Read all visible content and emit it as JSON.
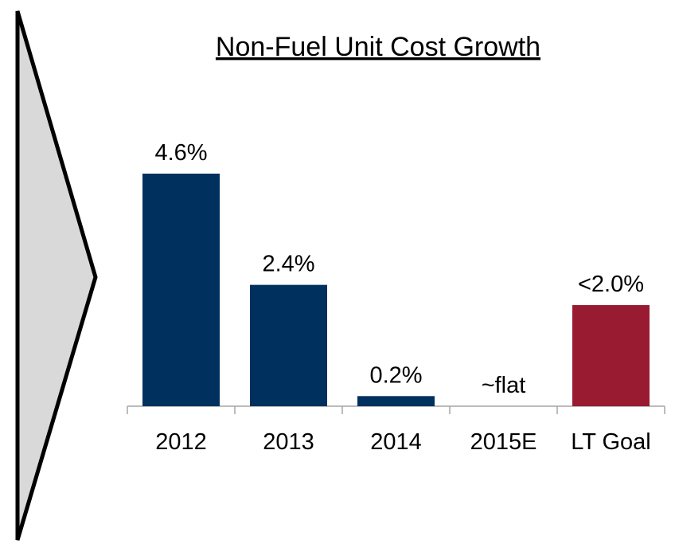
{
  "chart_data": {
    "type": "bar",
    "title": "Non-Fuel Unit Cost Growth",
    "categories": [
      "2012",
      "2013",
      "2014",
      "2015E",
      "LT Goal"
    ],
    "values": [
      4.6,
      2.4,
      0.2,
      0,
      2.0
    ],
    "value_labels": [
      "4.6%",
      "2.4%",
      "0.2%",
      "~flat",
      "<2.0%"
    ],
    "colors": [
      "#00305e",
      "#00305e",
      "#00305e",
      "#00305e",
      "#981b32"
    ]
  }
}
